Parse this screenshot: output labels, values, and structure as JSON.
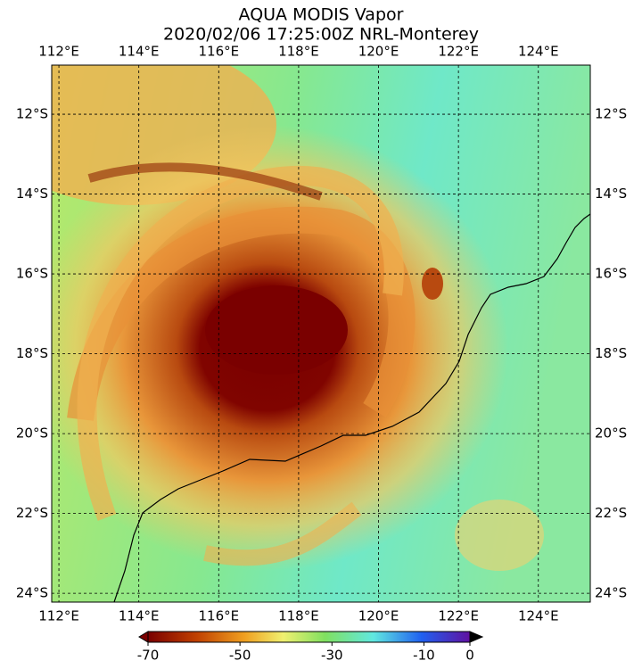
{
  "title": [
    "AQUA MODIS Vapor",
    "2020/02/06 17:25:00Z NRL-Monterey"
  ],
  "map": {
    "lonlim": [
      111.82,
      125.3
    ],
    "latlim": [
      -24.22,
      -10.77
    ],
    "lonticks": [
      {
        "value": 112,
        "label": "112°E"
      },
      {
        "value": 114,
        "label": "114°E"
      },
      {
        "value": 116,
        "label": "116°E"
      },
      {
        "value": 118,
        "label": "118°E"
      },
      {
        "value": 120,
        "label": "120°E"
      },
      {
        "value": 122,
        "label": "122°E"
      },
      {
        "value": 124,
        "label": "124°E"
      }
    ],
    "latticks": [
      {
        "value": -12,
        "label": "12°S"
      },
      {
        "value": -14,
        "label": "14°S"
      },
      {
        "value": -16,
        "label": "16°S"
      },
      {
        "value": -18,
        "label": "18°S"
      },
      {
        "value": -20,
        "label": "20°S"
      },
      {
        "value": -22,
        "label": "22°S"
      },
      {
        "value": -24,
        "label": "24°S"
      }
    ]
  },
  "colorbar": {
    "lim": [
      -70,
      0
    ],
    "ticks": [
      -70,
      -50,
      -30,
      -10,
      0
    ]
  }
}
